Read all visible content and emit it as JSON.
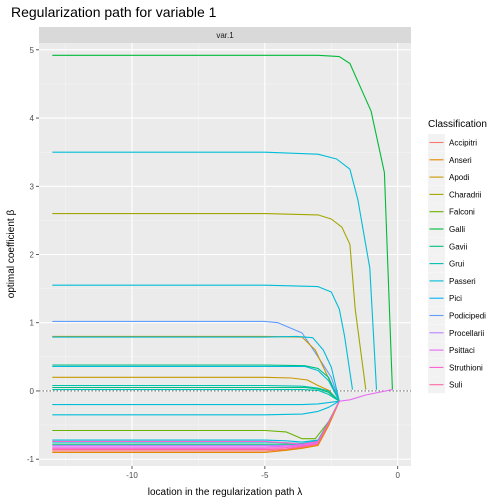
{
  "chart_data": {
    "type": "line",
    "title": "Regularization path for variable 1",
    "facet_label": "var.1",
    "xlabel": "location in the regularization path  λ",
    "ylabel": "optimal coefficient  β",
    "xlim": [
      -13.5,
      0.5
    ],
    "ylim": [
      -1.1,
      5.1
    ],
    "x_ticks": [
      -10,
      -5,
      0
    ],
    "y_ticks": [
      -1,
      0,
      1,
      2,
      3,
      4,
      5
    ],
    "grid": true,
    "legend": {
      "title": "Classification",
      "position": "right",
      "entries": [
        {
          "label": "Accipitri",
          "color": "#F8766D"
        },
        {
          "label": "Anseri",
          "color": "#E58700"
        },
        {
          "label": "Apodi",
          "color": "#C99800"
        },
        {
          "label": "Charadrii",
          "color": "#A3A500"
        },
        {
          "label": "Falconi",
          "color": "#6BB100"
        },
        {
          "label": "Galli",
          "color": "#00BA38"
        },
        {
          "label": "Gavii",
          "color": "#00BF7D"
        },
        {
          "label": "Grui",
          "color": "#00C0AF"
        },
        {
          "label": "Passeri",
          "color": "#00BCD8"
        },
        {
          "label": "Pici",
          "color": "#00B0F6"
        },
        {
          "label": "Podicipedi",
          "color": "#619CFF"
        },
        {
          "label": "Procellarii",
          "color": "#B983FF"
        },
        {
          "label": "Psittaci",
          "color": "#E76BF3"
        },
        {
          "label": "Struthioni",
          "color": "#FD61D1"
        },
        {
          "label": "Suli",
          "color": "#FF67A4"
        }
      ]
    },
    "series": [
      {
        "color": "#00BA38",
        "points": [
          [
            -13,
            4.92
          ],
          [
            -5,
            4.92
          ],
          [
            -3,
            4.92
          ],
          [
            -2.2,
            4.9
          ],
          [
            -1.8,
            4.8
          ],
          [
            -1,
            4.1
          ],
          [
            -0.5,
            3.2
          ],
          [
            -0.2,
            0.02
          ]
        ]
      },
      {
        "color": "#00BCD8",
        "points": [
          [
            -13,
            3.5
          ],
          [
            -5,
            3.5
          ],
          [
            -3,
            3.47
          ],
          [
            -2.3,
            3.4
          ],
          [
            -1.8,
            3.25
          ],
          [
            -1.5,
            2.8
          ],
          [
            -1.05,
            1.8
          ],
          [
            -0.8,
            0.02
          ]
        ]
      },
      {
        "color": "#A3A500",
        "points": [
          [
            -13,
            2.6
          ],
          [
            -5,
            2.6
          ],
          [
            -3,
            2.58
          ],
          [
            -2.5,
            2.52
          ],
          [
            -2.1,
            2.4
          ],
          [
            -1.8,
            2.15
          ],
          [
            -1.6,
            1.2
          ],
          [
            -1.2,
            0.02
          ]
        ]
      },
      {
        "color": "#00BCD8",
        "points": [
          [
            -13,
            1.55
          ],
          [
            -5,
            1.55
          ],
          [
            -3,
            1.53
          ],
          [
            -2.5,
            1.45
          ],
          [
            -2.2,
            1.2
          ],
          [
            -2.0,
            0.8
          ],
          [
            -1.7,
            0.02
          ]
        ]
      },
      {
        "color": "#619CFF",
        "points": [
          [
            -13,
            1.02
          ],
          [
            -5,
            1.02
          ],
          [
            -4.5,
            1.0
          ],
          [
            -3.6,
            0.85
          ],
          [
            -3.0,
            0.5
          ],
          [
            -2.5,
            0.2
          ],
          [
            -2.2,
            -0.15
          ]
        ]
      },
      {
        "color": "#C99800",
        "points": [
          [
            -13,
            0.8
          ],
          [
            -5,
            0.8
          ],
          [
            -3.6,
            0.79
          ],
          [
            -3.1,
            0.6
          ],
          [
            -2.8,
            0.35
          ],
          [
            -2.5,
            0.1
          ],
          [
            -2.2,
            -0.15
          ]
        ]
      },
      {
        "color": "#00BCD8",
        "points": [
          [
            -13,
            0.79
          ],
          [
            -5,
            0.79
          ],
          [
            -3.8,
            0.8
          ],
          [
            -3.2,
            0.78
          ],
          [
            -2.8,
            0.6
          ],
          [
            -2.5,
            0.35
          ],
          [
            -2.2,
            -0.15
          ]
        ]
      },
      {
        "color": "#00BF7D",
        "points": [
          [
            -13,
            0.38
          ],
          [
            -5,
            0.38
          ],
          [
            -3.5,
            0.37
          ],
          [
            -3.0,
            0.33
          ],
          [
            -2.6,
            0.2
          ],
          [
            -2.2,
            -0.15
          ]
        ]
      },
      {
        "color": "#00BCD8",
        "points": [
          [
            -13,
            0.36
          ],
          [
            -5,
            0.36
          ],
          [
            -3.5,
            0.36
          ],
          [
            -3.0,
            0.3
          ],
          [
            -2.6,
            0.15
          ],
          [
            -2.2,
            -0.15
          ]
        ]
      },
      {
        "color": "#C99800",
        "points": [
          [
            -13,
            0.2
          ],
          [
            -5,
            0.2
          ],
          [
            -4.0,
            0.19
          ],
          [
            -3.4,
            0.16
          ],
          [
            -3.0,
            0.08
          ],
          [
            -2.6,
            0.01
          ],
          [
            -2.2,
            -0.15
          ]
        ]
      },
      {
        "color": "#00C0AF",
        "points": [
          [
            -13,
            0.08
          ],
          [
            -5,
            0.08
          ],
          [
            -3.6,
            0.07
          ],
          [
            -3.0,
            0.04
          ],
          [
            -2.6,
            0.0
          ],
          [
            -2.2,
            -0.15
          ]
        ]
      },
      {
        "color": "#00BF7D",
        "points": [
          [
            -13,
            0.05
          ],
          [
            -5,
            0.05
          ],
          [
            -3.5,
            0.05
          ],
          [
            -3.0,
            0.03
          ],
          [
            -2.6,
            -0.02
          ],
          [
            -2.2,
            -0.15
          ]
        ]
      },
      {
        "color": "#00C0AF",
        "points": [
          [
            -13,
            0.02
          ],
          [
            -5,
            0.02
          ],
          [
            -3.6,
            0.02
          ],
          [
            -3.0,
            0.01
          ],
          [
            -2.6,
            -0.05
          ],
          [
            -2.2,
            -0.15
          ]
        ]
      },
      {
        "color": "#00BCD8",
        "points": [
          [
            -13,
            -0.2
          ],
          [
            -5,
            -0.2
          ],
          [
            -3.6,
            -0.2
          ],
          [
            -3.0,
            -0.19
          ],
          [
            -2.6,
            -0.17
          ],
          [
            -2.2,
            -0.15
          ]
        ]
      },
      {
        "color": "#00BCD8",
        "points": [
          [
            -13,
            -0.35
          ],
          [
            -5,
            -0.35
          ],
          [
            -3.6,
            -0.34
          ],
          [
            -3.0,
            -0.3
          ],
          [
            -2.6,
            -0.24
          ],
          [
            -2.2,
            -0.15
          ]
        ]
      },
      {
        "color": "#6BB100",
        "points": [
          [
            -13,
            -0.58
          ],
          [
            -5,
            -0.58
          ],
          [
            -4.2,
            -0.6
          ],
          [
            -3.6,
            -0.7
          ],
          [
            -3.1,
            -0.7
          ],
          [
            -2.6,
            -0.45
          ],
          [
            -2.2,
            -0.15
          ]
        ]
      },
      {
        "color": "#00BCD8",
        "points": [
          [
            -13,
            -0.72
          ],
          [
            -5,
            -0.72
          ],
          [
            -4.2,
            -0.73
          ],
          [
            -3.6,
            -0.75
          ],
          [
            -3.0,
            -0.72
          ],
          [
            -2.6,
            -0.45
          ],
          [
            -2.2,
            -0.15
          ]
        ]
      },
      {
        "color": "#00BCD8",
        "points": [
          [
            -13,
            -0.75
          ],
          [
            -5,
            -0.75
          ],
          [
            -4.2,
            -0.76
          ],
          [
            -3.6,
            -0.77
          ],
          [
            -3.0,
            -0.73
          ],
          [
            -2.6,
            -0.46
          ],
          [
            -2.2,
            -0.15
          ]
        ]
      },
      {
        "color": "#00BF7D",
        "points": [
          [
            -13,
            -0.78
          ],
          [
            -5,
            -0.78
          ],
          [
            -4.2,
            -0.78
          ],
          [
            -3.6,
            -0.78
          ],
          [
            -3.0,
            -0.74
          ],
          [
            -2.6,
            -0.47
          ],
          [
            -2.2,
            -0.15
          ]
        ]
      },
      {
        "color": "#B983FF",
        "points": [
          [
            -13,
            -0.8
          ],
          [
            -5,
            -0.8
          ],
          [
            -4.2,
            -0.8
          ],
          [
            -3.6,
            -0.79
          ],
          [
            -3.0,
            -0.75
          ],
          [
            -2.6,
            -0.48
          ],
          [
            -2.2,
            -0.15
          ]
        ]
      },
      {
        "color": "#E76BF3",
        "points": [
          [
            -13,
            -0.82
          ],
          [
            -5,
            -0.82
          ],
          [
            -4.2,
            -0.81
          ],
          [
            -3.6,
            -0.8
          ],
          [
            -3.0,
            -0.76
          ],
          [
            -2.6,
            -0.48
          ],
          [
            -2.2,
            -0.15
          ]
        ]
      },
      {
        "color": "#FD61D1",
        "points": [
          [
            -13,
            -0.84
          ],
          [
            -5,
            -0.84
          ],
          [
            -4.2,
            -0.83
          ],
          [
            -3.6,
            -0.81
          ],
          [
            -3.0,
            -0.77
          ],
          [
            -2.6,
            -0.49
          ],
          [
            -2.2,
            -0.15
          ]
        ]
      },
      {
        "color": "#FF67A4",
        "points": [
          [
            -13,
            -0.86
          ],
          [
            -5,
            -0.86
          ],
          [
            -4.2,
            -0.85
          ],
          [
            -3.6,
            -0.82
          ],
          [
            -3.0,
            -0.78
          ],
          [
            -2.6,
            -0.5
          ],
          [
            -2.2,
            -0.15
          ]
        ]
      },
      {
        "color": "#F8766D",
        "points": [
          [
            -13,
            -0.88
          ],
          [
            -5,
            -0.88
          ],
          [
            -4.2,
            -0.86
          ],
          [
            -3.6,
            -0.83
          ],
          [
            -3.0,
            -0.79
          ],
          [
            -2.6,
            -0.5
          ],
          [
            -2.2,
            -0.15
          ]
        ]
      },
      {
        "color": "#E58700",
        "points": [
          [
            -13,
            -0.9
          ],
          [
            -5,
            -0.9
          ],
          [
            -4.2,
            -0.87
          ],
          [
            -3.6,
            -0.84
          ],
          [
            -3.0,
            -0.8
          ],
          [
            -2.6,
            -0.51
          ],
          [
            -2.2,
            -0.15
          ]
        ]
      },
      {
        "color": "#FD61D1",
        "points": [
          [
            -13,
            -0.74
          ],
          [
            -5,
            -0.74
          ],
          [
            -4.2,
            -0.76
          ],
          [
            -3.6,
            -0.78
          ],
          [
            -3.0,
            -0.74
          ],
          [
            -2.6,
            -0.46
          ],
          [
            -2.2,
            -0.15
          ]
        ]
      },
      {
        "color": "#E76BF3",
        "points": [
          [
            -2.2,
            -0.15
          ],
          [
            -1.8,
            -0.13
          ],
          [
            -1.2,
            -0.06
          ],
          [
            -0.2,
            0.02
          ]
        ]
      }
    ]
  }
}
